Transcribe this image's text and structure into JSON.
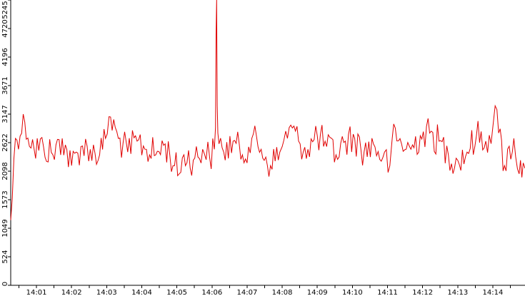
{
  "chart_data": {
    "type": "line",
    "title": "",
    "xlabel": "",
    "ylabel": "",
    "grid": false,
    "legend": "none",
    "colors": {
      "line": "#e00000",
      "axis": "#000000",
      "background": "#ffffff"
    },
    "ylim": [
      0,
      5245
    ],
    "y_ticks": [
      0,
      524,
      1049,
      1573,
      2098,
      2622,
      3147,
      3671,
      4196,
      4720,
      5245
    ],
    "y_tick_labels": [
      "0",
      "524",
      "1049",
      "1573",
      "2098",
      "2622",
      "3147",
      "3671",
      "4196",
      "4720",
      "5245"
    ],
    "xlim": [
      "14:00:16",
      "14:14:55"
    ],
    "x_ticks": [
      "14:01",
      "14:02",
      "14:03",
      "14:04",
      "14:05",
      "14:06",
      "14:07",
      "14:08",
      "14:09",
      "14:10",
      "14:11",
      "14:12",
      "14:13",
      "14:14"
    ],
    "series": [
      {
        "x": [
          "14:00:16",
          "14:00:24",
          "14:00:40",
          "14:00:56",
          "14:01:12",
          "14:01:28",
          "14:01:44",
          "14:02:00",
          "14:02:16",
          "14:02:32",
          "14:02:48",
          "14:02:58",
          "14:03:04",
          "14:03:20",
          "14:03:36",
          "14:03:52",
          "14:04:08",
          "14:04:24",
          "14:04:40",
          "14:04:56",
          "14:05:04",
          "14:05:12",
          "14:05:28",
          "14:05:44",
          "14:05:56",
          "14:06:04",
          "14:06:06",
          "14:06:07",
          "14:06:08",
          "14:06:09",
          "14:06:10",
          "14:06:12",
          "14:06:20",
          "14:06:36",
          "14:06:52",
          "14:07:08",
          "14:07:24",
          "14:07:40",
          "14:07:56",
          "14:08:00",
          "14:08:12",
          "14:08:28",
          "14:08:44",
          "14:09:00",
          "14:09:16",
          "14:09:32",
          "14:09:48",
          "14:10:04",
          "14:10:20",
          "14:10:36",
          "14:10:52",
          "14:11:04",
          "14:11:08",
          "14:11:24",
          "14:11:40",
          "14:11:56",
          "14:12:12",
          "14:12:28",
          "14:12:44",
          "14:13:00",
          "14:13:16",
          "14:13:32",
          "14:13:48",
          "14:14:00",
          "14:14:04",
          "14:14:10",
          "14:14:20",
          "14:14:36",
          "14:14:45",
          "14:14:52",
          "14:14:55"
        ],
        "y": [
          1200,
          2700,
          3000,
          2500,
          2550,
          2400,
          2700,
          2200,
          2550,
          2500,
          2400,
          2700,
          3100,
          2700,
          2450,
          2650,
          2500,
          2400,
          2600,
          2200,
          2050,
          2400,
          2300,
          2500,
          2350,
          2500,
          2900,
          4600,
          5245,
          3300,
          2800,
          2600,
          2450,
          2650,
          2400,
          2700,
          2500,
          2200,
          2450,
          2550,
          2900,
          2650,
          2500,
          2750,
          2550,
          2400,
          2650,
          2700,
          2450,
          2600,
          2350,
          2200,
          2700,
          2600,
          2500,
          2750,
          2800,
          2650,
          2400,
          2300,
          2450,
          2750,
          2650,
          2900,
          3300,
          2800,
          2200,
          2700,
          2050,
          2250,
          2150
        ]
      }
    ]
  }
}
